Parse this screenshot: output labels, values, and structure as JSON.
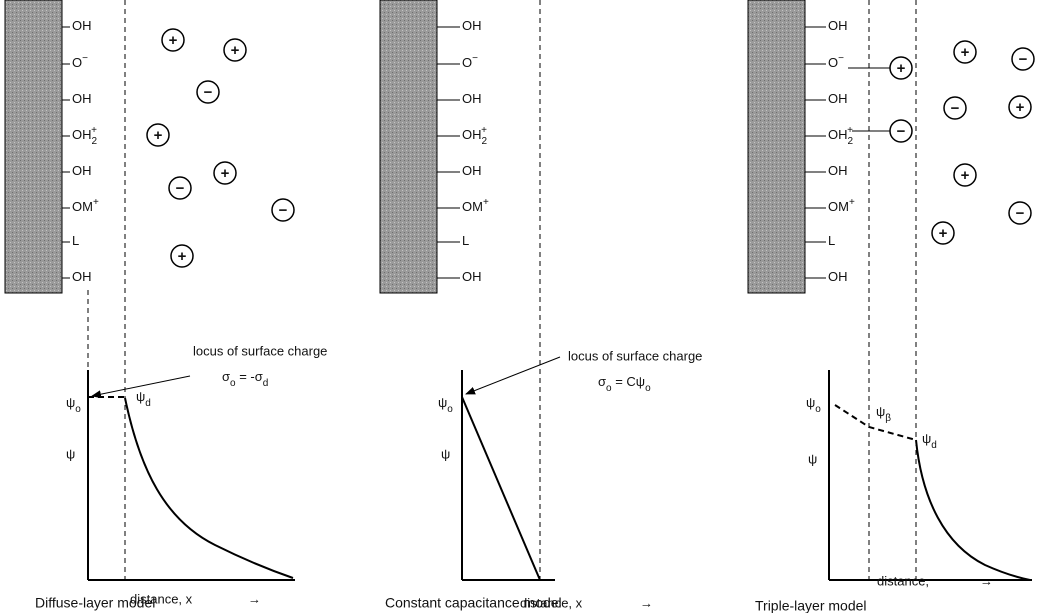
{
  "panels": [
    {
      "caption": "Diffuse-layer model",
      "surface": [
        {
          "base": "OH"
        },
        {
          "base": "O",
          "sup": "−"
        },
        {
          "base": "OH"
        },
        {
          "base": "OH",
          "sub": "2",
          "sup": "+"
        },
        {
          "base": "OH"
        },
        {
          "base": "OM",
          "sup": "+"
        },
        {
          "base": "L"
        },
        {
          "base": "OH"
        }
      ],
      "ions": [
        "+",
        "+",
        "−",
        "+",
        "+",
        "−",
        "−",
        "+"
      ],
      "annotation": "locus of surface charge",
      "equation": [
        {
          "base": "σ",
          "sub": "o"
        },
        {
          "base": " = -σ",
          "sub": "d"
        }
      ],
      "psi": "ψ",
      "potentials": [
        {
          "base": "ψ",
          "sub": "o"
        },
        {
          "base": "ψ",
          "sub": "d"
        }
      ],
      "xlabel": "distance, x",
      "arrow": "→"
    },
    {
      "caption": "Constant capacitance model",
      "surface": [
        {
          "base": "OH"
        },
        {
          "base": "O",
          "sup": "−"
        },
        {
          "base": "OH"
        },
        {
          "base": "OH",
          "sub": "2",
          "sup": "+"
        },
        {
          "base": "OH"
        },
        {
          "base": "OM",
          "sup": "+"
        },
        {
          "base": "L"
        },
        {
          "base": "OH"
        }
      ],
      "ions": [],
      "annotation": "locus of surface charge",
      "equation": [
        {
          "base": "σ",
          "sub": "o"
        },
        {
          "base": " = Cψ",
          "sub": "o"
        }
      ],
      "psi": "ψ",
      "potentials": [
        {
          "base": "ψ",
          "sub": "o"
        }
      ],
      "xlabel": "distance, x",
      "arrow": "→"
    },
    {
      "caption": "Triple-layer model",
      "surface": [
        {
          "base": "OH"
        },
        {
          "base": "O",
          "sup": "−"
        },
        {
          "base": "OH"
        },
        {
          "base": "OH",
          "sub": "2",
          "sup": "+"
        },
        {
          "base": "OH"
        },
        {
          "base": "OM",
          "sup": "+"
        },
        {
          "base": "L"
        },
        {
          "base": "OH"
        }
      ],
      "ions": [
        "+",
        "−",
        "+",
        "−",
        "−",
        "+",
        "+",
        "−",
        "+"
      ],
      "psi": "ψ",
      "potentials": [
        {
          "base": "ψ",
          "sub": "o"
        },
        {
          "base": "ψ",
          "sub": "β"
        },
        {
          "base": "ψ",
          "sub": "d"
        }
      ],
      "xlabel": "distance,",
      "arrow": "→"
    }
  ]
}
